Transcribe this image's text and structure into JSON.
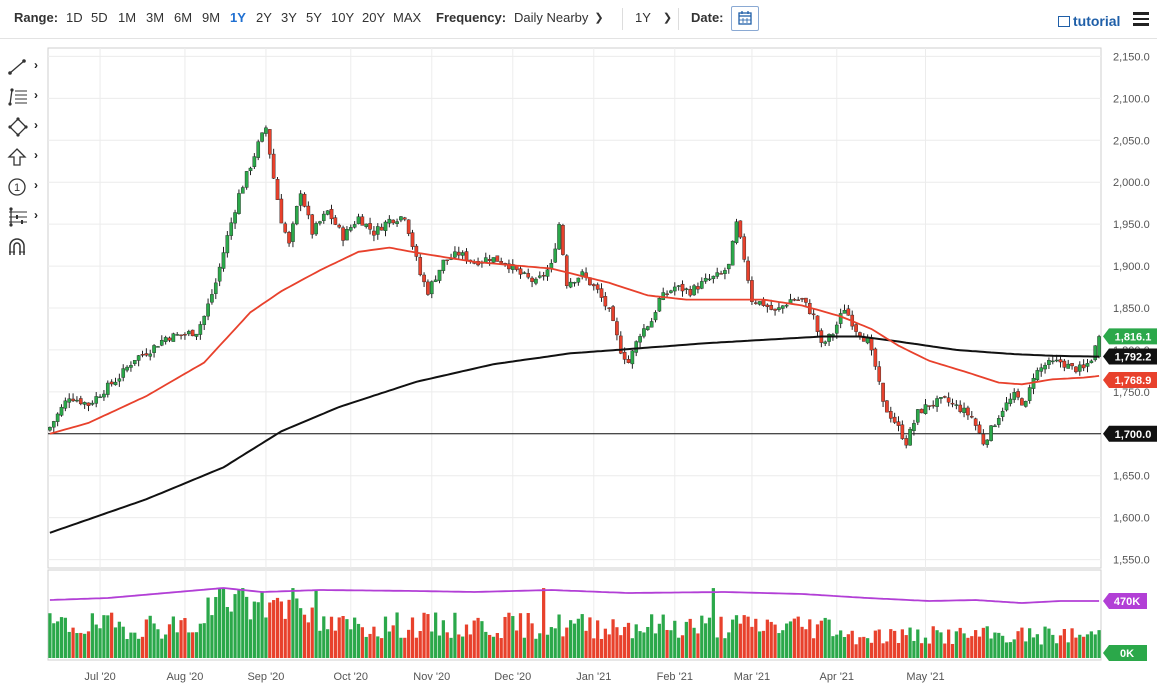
{
  "header": {
    "range_label": "Range:",
    "ranges": [
      "1D",
      "5D",
      "1M",
      "3M",
      "6M",
      "9M",
      "1Y",
      "2Y",
      "3Y",
      "5Y",
      "10Y",
      "20Y",
      "MAX"
    ],
    "active_range": "1Y",
    "frequency_label": "Frequency:",
    "frequency_value": "Daily Nearby",
    "period_value": "1Y",
    "date_label": "Date:",
    "tutorial_label": "tutorial"
  },
  "toolbar": {
    "tools": [
      "line-tool-icon",
      "fibonacci-tool-icon",
      "shapes-tool-icon",
      "arrow-tool-icon",
      "counter-tool-icon",
      "measure-tool-icon",
      "magnet-icon"
    ]
  },
  "chart_data": {
    "type": "candlestick",
    "x_labels": [
      "Jul '20",
      "Aug '20",
      "Sep '20",
      "Oct '20",
      "Nov '20",
      "Dec '20",
      "Jan '21",
      "Feb '21",
      "Mar '21",
      "Apr '21",
      "May '21"
    ],
    "y_ticks": [
      "2,150.0",
      "2,100.0",
      "2,050.0",
      "2,000.0",
      "1,950.0",
      "1,900.0",
      "1,850.0",
      "1,800.0",
      "1,750.0",
      "1,700.0",
      "1,650.0",
      "1,600.0",
      "1,550.0"
    ],
    "ylim": [
      1540,
      2160
    ],
    "price_labels": [
      {
        "text": "1,816.1",
        "value": 1816.1,
        "color": "#2ba84a"
      },
      {
        "text": "1,792.2",
        "value": 1792.2,
        "color": "#111111"
      },
      {
        "text": "1,768.9",
        "value": 1768.9,
        "color": "#e8412c"
      },
      {
        "text": "1,700.0",
        "value": 1700.0,
        "color": "#111111"
      }
    ],
    "horizontal_line": 1700,
    "close_series": [
      [
        0,
        1708
      ],
      [
        5,
        1745
      ],
      [
        10,
        1735
      ],
      [
        14,
        1752
      ],
      [
        18,
        1768
      ],
      [
        22,
        1790
      ],
      [
        26,
        1800
      ],
      [
        30,
        1815
      ],
      [
        34,
        1818
      ],
      [
        38,
        1822
      ],
      [
        40,
        1840
      ],
      [
        43,
        1880
      ],
      [
        46,
        1935
      ],
      [
        49,
        1985
      ],
      [
        52,
        2020
      ],
      [
        54,
        2045
      ],
      [
        56,
        2065
      ],
      [
        58,
        2005
      ],
      [
        60,
        1955
      ],
      [
        62,
        1925
      ],
      [
        65,
        1990
      ],
      [
        68,
        1940
      ],
      [
        72,
        1965
      ],
      [
        76,
        1935
      ],
      [
        80,
        1958
      ],
      [
        84,
        1940
      ],
      [
        88,
        1955
      ],
      [
        92,
        1960
      ],
      [
        94,
        1925
      ],
      [
        96,
        1890
      ],
      [
        98,
        1870
      ],
      [
        102,
        1905
      ],
      [
        106,
        1915
      ],
      [
        110,
        1905
      ],
      [
        114,
        1910
      ],
      [
        118,
        1905
      ],
      [
        122,
        1890
      ],
      [
        126,
        1880
      ],
      [
        130,
        1900
      ],
      [
        132,
        1950
      ],
      [
        134,
        1880
      ],
      [
        138,
        1890
      ],
      [
        142,
        1870
      ],
      [
        145,
        1845
      ],
      [
        148,
        1800
      ],
      [
        150,
        1785
      ],
      [
        153,
        1820
      ],
      [
        156,
        1835
      ],
      [
        158,
        1860
      ],
      [
        162,
        1875
      ],
      [
        166,
        1870
      ],
      [
        170,
        1882
      ],
      [
        174,
        1890
      ],
      [
        176,
        1900
      ],
      [
        178,
        1950
      ],
      [
        180,
        1910
      ],
      [
        182,
        1860
      ],
      [
        185,
        1855
      ],
      [
        188,
        1845
      ],
      [
        192,
        1860
      ],
      [
        195,
        1860
      ],
      [
        198,
        1840
      ],
      [
        200,
        1805
      ],
      [
        203,
        1820
      ],
      [
        206,
        1850
      ],
      [
        209,
        1825
      ],
      [
        212,
        1810
      ],
      [
        214,
        1780
      ],
      [
        216,
        1735
      ],
      [
        219,
        1715
      ],
      [
        222,
        1690
      ],
      [
        225,
        1725
      ],
      [
        228,
        1735
      ],
      [
        232,
        1740
      ],
      [
        236,
        1730
      ],
      [
        239,
        1720
      ],
      [
        242,
        1690
      ],
      [
        244,
        1705
      ],
      [
        247,
        1730
      ],
      [
        250,
        1745
      ],
      [
        253,
        1735
      ],
      [
        255,
        1770
      ],
      [
        258,
        1782
      ],
      [
        262,
        1786
      ],
      [
        265,
        1778
      ],
      [
        268,
        1777
      ],
      [
        270,
        1790
      ],
      [
        272,
        1816
      ]
    ],
    "sma_50": [
      [
        0,
        1700
      ],
      [
        10,
        1713
      ],
      [
        25,
        1745
      ],
      [
        40,
        1785
      ],
      [
        52,
        1845
      ],
      [
        60,
        1870
      ],
      [
        70,
        1895
      ],
      [
        80,
        1917
      ],
      [
        88,
        1922
      ],
      [
        95,
        1916
      ],
      [
        110,
        1905
      ],
      [
        130,
        1897
      ],
      [
        145,
        1880
      ],
      [
        155,
        1865
      ],
      [
        165,
        1860
      ],
      [
        175,
        1860
      ],
      [
        185,
        1860
      ],
      [
        195,
        1853
      ],
      [
        205,
        1840
      ],
      [
        213,
        1825
      ],
      [
        220,
        1805
      ],
      [
        228,
        1787
      ],
      [
        238,
        1773
      ],
      [
        246,
        1761
      ],
      [
        252,
        1759
      ],
      [
        260,
        1765
      ],
      [
        268,
        1767
      ],
      [
        272,
        1769
      ]
    ],
    "sma_200": [
      [
        0,
        1582
      ],
      [
        25,
        1622
      ],
      [
        45,
        1660
      ],
      [
        60,
        1703
      ],
      [
        75,
        1732
      ],
      [
        95,
        1762
      ],
      [
        115,
        1783
      ],
      [
        135,
        1796
      ],
      [
        150,
        1801
      ],
      [
        170,
        1808
      ],
      [
        185,
        1812
      ],
      [
        200,
        1816
      ],
      [
        210,
        1816
      ],
      [
        220,
        1810
      ],
      [
        235,
        1800
      ],
      [
        250,
        1795
      ],
      [
        260,
        1793
      ],
      [
        272,
        1792
      ]
    ],
    "volume_labels": [
      "470K",
      "0K"
    ],
    "volume_line_color": "#b23fd6",
    "up_color": "#2ba84a",
    "down_color": "#e8412c"
  }
}
